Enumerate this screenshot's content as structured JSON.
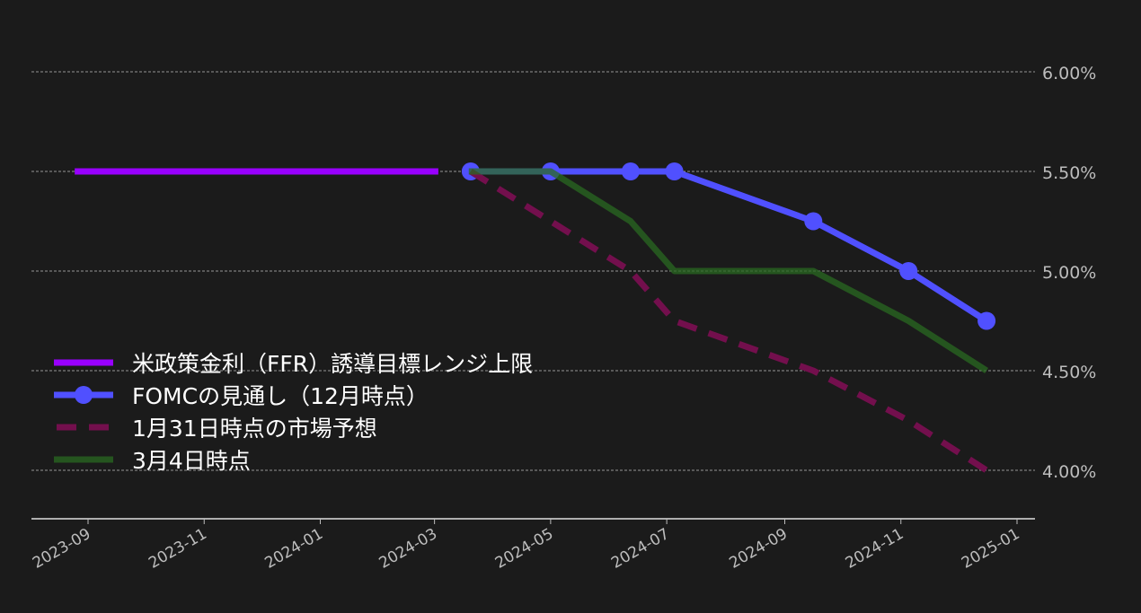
{
  "chart_data": {
    "type": "line",
    "title": "",
    "xlabel": "",
    "ylabel": "",
    "ylim": [
      3.757,
      6.1
    ],
    "xlim": [
      "2023-08-06",
      "2025-01-12"
    ],
    "y_ticks": [
      {
        "value": 4.0,
        "label": "4.00%"
      },
      {
        "value": 4.5,
        "label": "4.50%"
      },
      {
        "value": 5.0,
        "label": "5.00%"
      },
      {
        "value": 5.5,
        "label": "5.50%"
      },
      {
        "value": 6.0,
        "label": "6.00%"
      }
    ],
    "x_ticks": [
      "2023-09",
      "2023-11",
      "2024-01",
      "2024-03",
      "2024-05",
      "2024-07",
      "2024-09",
      "2024-11",
      "2025-01"
    ],
    "grid": "horizontal dashed",
    "legend_position": "lower-left",
    "series": [
      {
        "name": "米政策金利（FFR）誘導目標レンジ上限",
        "color": "#9900ff",
        "style": "solid",
        "marker": false,
        "x": [
          "2023-08-25",
          "2024-03-03"
        ],
        "y": [
          5.5,
          5.5
        ]
      },
      {
        "name": "FOMCの見通し（12月時点）",
        "color": "#5050ff",
        "style": "solid",
        "marker": true,
        "x": [
          "2024-03-20",
          "2024-05-01",
          "2024-06-12",
          "2024-07-05",
          "2024-09-16",
          "2024-11-05",
          "2024-12-16"
        ],
        "y": [
          5.5,
          5.5,
          5.5,
          5.5,
          5.25,
          5.0,
          4.75
        ]
      },
      {
        "name": "1月31日時点の市場予想",
        "color": "#730f4d",
        "style": "dashed",
        "marker": false,
        "x": [
          "2024-03-20",
          "2024-05-01",
          "2024-06-12",
          "2024-07-05",
          "2024-09-16",
          "2024-11-05",
          "2024-12-16"
        ],
        "y": [
          5.5,
          5.25,
          5.0,
          4.75,
          4.5,
          4.25,
          4.0
        ]
      },
      {
        "name": "3月4日時点",
        "color": "#2a6a22",
        "style": "solid",
        "marker": false,
        "x": [
          "2024-03-19",
          "2024-05-01",
          "2024-06-12",
          "2024-07-05",
          "2024-09-16",
          "2024-11-05",
          "2024-12-16"
        ],
        "y": [
          5.5,
          5.5,
          5.25,
          5.0,
          5.0,
          4.75,
          4.5
        ]
      }
    ]
  }
}
